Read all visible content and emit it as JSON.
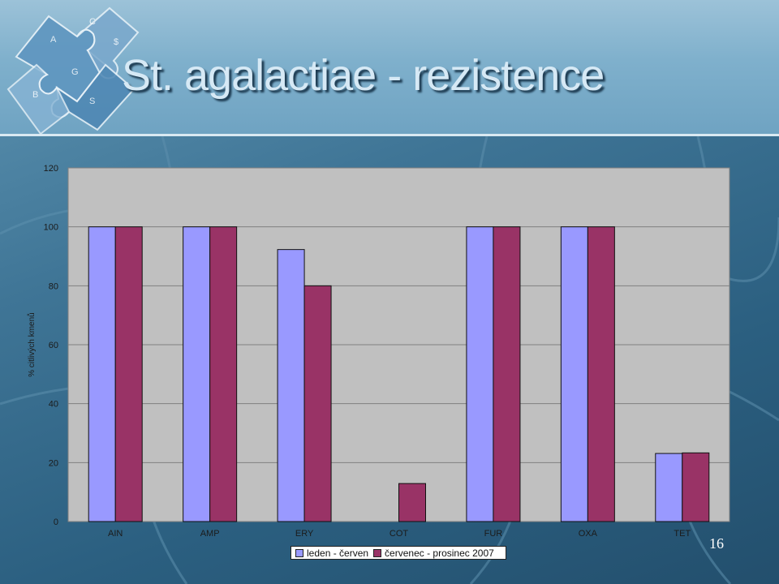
{
  "slide": {
    "title": "St. agalactiae - rezistence",
    "slide_number": "16"
  },
  "colors": {
    "series1": "#9999ff",
    "series2": "#993366",
    "plot_bg": "#c0c0c0"
  },
  "chart_data": {
    "type": "bar",
    "title": "",
    "xlabel": "",
    "ylabel": "% citlivých kmenů",
    "ylim": [
      0,
      120
    ],
    "yticks": [
      0,
      20,
      40,
      60,
      80,
      100,
      120
    ],
    "grid": true,
    "legend_position": "bottom",
    "categories": [
      "AIN",
      "AMP",
      "ERY",
      "COT",
      "FUR",
      "OXA",
      "TET"
    ],
    "series": [
      {
        "name": "leden - červen",
        "values": [
          100,
          100,
          92.3,
          0,
          100,
          100,
          23.1
        ]
      },
      {
        "name": "červenec - prosinec 2007",
        "values": [
          100,
          100,
          80,
          12.9,
          100,
          100,
          23.3
        ]
      }
    ]
  }
}
